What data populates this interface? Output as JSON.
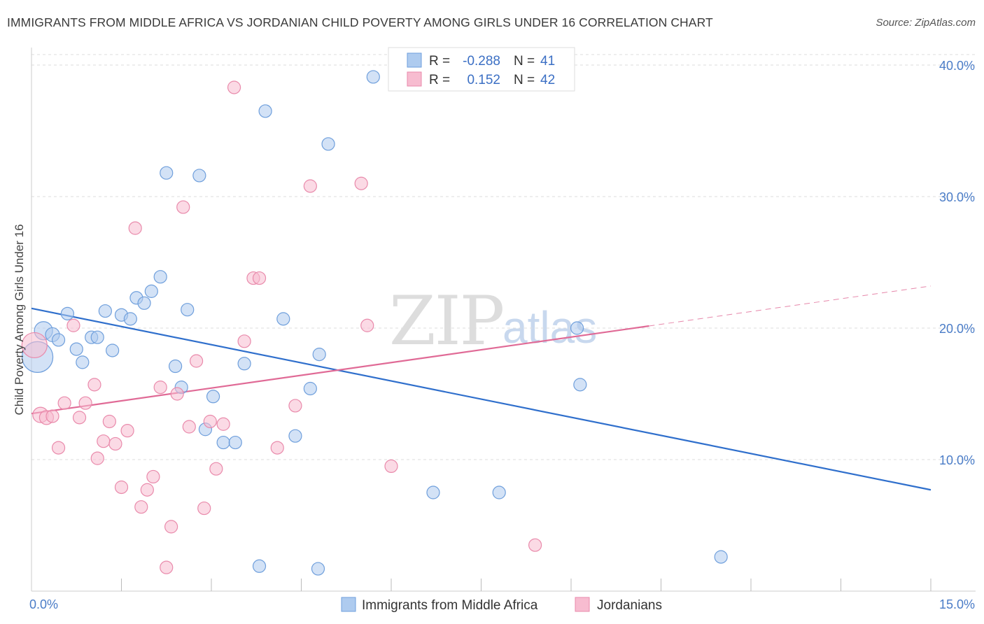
{
  "header": {
    "title": "IMMIGRANTS FROM MIDDLE AFRICA VS JORDANIAN CHILD POVERTY AMONG GIRLS UNDER 16 CORRELATION CHART",
    "source": "Source: ZipAtlas.com"
  },
  "watermark": {
    "part1": "ZIP",
    "part2": "atlas"
  },
  "legend": {
    "r_label": "R =",
    "n_label": "N =",
    "series": [
      {
        "r": "-0.288",
        "n": "41"
      },
      {
        "r": "0.152",
        "n": "42"
      }
    ]
  },
  "colors": {
    "blue_fill": "#aecbef",
    "blue_stroke": "#6f9fdc",
    "blue_line": "#2f6fcc",
    "pink_fill": "#f7bcd0",
    "pink_stroke": "#e98aab",
    "pink_line": "#e06a96",
    "grid": "#dddddd",
    "tick_text": "#4a7cc7"
  },
  "chart_data": {
    "type": "scatter",
    "title": "IMMIGRANTS FROM MIDDLE AFRICA VS JORDANIAN CHILD POVERTY AMONG GIRLS UNDER 16 CORRELATION CHART",
    "xlabel": "",
    "ylabel": "Child Poverty Among Girls Under 16",
    "xlim": [
      0,
      15
    ],
    "ylim": [
      0,
      40.8
    ],
    "x_tick_labels": [
      "0.0%",
      "15.0%"
    ],
    "y_ticks": [
      10,
      20,
      30,
      40
    ],
    "y_tick_labels": [
      "10.0%",
      "20.0%",
      "30.0%",
      "40.0%"
    ],
    "series": [
      {
        "name": "Immigrants from Middle Africa",
        "color": "blue",
        "trend": {
          "x": [
            0,
            15
          ],
          "y": [
            21.5,
            7.7
          ],
          "dashed_from": null
        },
        "points": [
          {
            "x": 0.1,
            "y": 17.8,
            "s": 22
          },
          {
            "x": 0.2,
            "y": 19.8,
            "s": 13
          },
          {
            "x": 0.35,
            "y": 19.5,
            "s": 10
          },
          {
            "x": 0.45,
            "y": 19.1,
            "s": 9
          },
          {
            "x": 0.6,
            "y": 21.1,
            "s": 9
          },
          {
            "x": 0.75,
            "y": 18.4,
            "s": 9
          },
          {
            "x": 0.85,
            "y": 17.4,
            "s": 9
          },
          {
            "x": 1.0,
            "y": 19.3,
            "s": 9
          },
          {
            "x": 1.1,
            "y": 19.3,
            "s": 9
          },
          {
            "x": 1.23,
            "y": 21.3,
            "s": 9
          },
          {
            "x": 1.35,
            "y": 18.3,
            "s": 9
          },
          {
            "x": 1.5,
            "y": 21.0,
            "s": 9
          },
          {
            "x": 1.65,
            "y": 20.7,
            "s": 9
          },
          {
            "x": 1.75,
            "y": 22.3,
            "s": 9
          },
          {
            "x": 1.88,
            "y": 21.9,
            "s": 9
          },
          {
            "x": 2.0,
            "y": 22.8,
            "s": 9
          },
          {
            "x": 2.15,
            "y": 23.9,
            "s": 9
          },
          {
            "x": 2.25,
            "y": 31.8,
            "s": 9
          },
          {
            "x": 2.4,
            "y": 17.1,
            "s": 9
          },
          {
            "x": 2.5,
            "y": 15.5,
            "s": 9
          },
          {
            "x": 2.6,
            "y": 21.4,
            "s": 9
          },
          {
            "x": 2.8,
            "y": 31.6,
            "s": 9
          },
          {
            "x": 2.9,
            "y": 12.3,
            "s": 9
          },
          {
            "x": 3.03,
            "y": 14.8,
            "s": 9
          },
          {
            "x": 3.2,
            "y": 11.3,
            "s": 9
          },
          {
            "x": 3.4,
            "y": 11.3,
            "s": 9
          },
          {
            "x": 3.55,
            "y": 17.3,
            "s": 9
          },
          {
            "x": 3.8,
            "y": 1.9,
            "s": 9
          },
          {
            "x": 3.9,
            "y": 36.5,
            "s": 9
          },
          {
            "x": 4.2,
            "y": 20.7,
            "s": 9
          },
          {
            "x": 4.4,
            "y": 11.8,
            "s": 9
          },
          {
            "x": 4.65,
            "y": 15.4,
            "s": 9
          },
          {
            "x": 4.78,
            "y": 1.7,
            "s": 9
          },
          {
            "x": 4.8,
            "y": 18.0,
            "s": 9
          },
          {
            "x": 4.95,
            "y": 34.0,
            "s": 9
          },
          {
            "x": 5.7,
            "y": 39.1,
            "s": 9
          },
          {
            "x": 6.7,
            "y": 7.5,
            "s": 9
          },
          {
            "x": 7.8,
            "y": 7.5,
            "s": 9
          },
          {
            "x": 9.1,
            "y": 20.0,
            "s": 9
          },
          {
            "x": 9.15,
            "y": 15.7,
            "s": 9
          },
          {
            "x": 11.5,
            "y": 2.6,
            "s": 9
          }
        ]
      },
      {
        "name": "Jordanians",
        "color": "pink",
        "trend": {
          "x": [
            0,
            15
          ],
          "y": [
            13.5,
            23.2
          ],
          "dashed_from": 10.3
        },
        "points": [
          {
            "x": 0.05,
            "y": 18.7,
            "s": 18
          },
          {
            "x": 0.15,
            "y": 13.4,
            "s": 11
          },
          {
            "x": 0.25,
            "y": 13.2,
            "s": 10
          },
          {
            "x": 0.35,
            "y": 13.3,
            "s": 9
          },
          {
            "x": 0.45,
            "y": 10.9,
            "s": 9
          },
          {
            "x": 0.55,
            "y": 14.3,
            "s": 9
          },
          {
            "x": 0.7,
            "y": 20.2,
            "s": 9
          },
          {
            "x": 0.8,
            "y": 13.2,
            "s": 9
          },
          {
            "x": 0.9,
            "y": 14.3,
            "s": 9
          },
          {
            "x": 1.05,
            "y": 15.7,
            "s": 9
          },
          {
            "x": 1.1,
            "y": 10.1,
            "s": 9
          },
          {
            "x": 1.2,
            "y": 11.4,
            "s": 9
          },
          {
            "x": 1.3,
            "y": 12.9,
            "s": 9
          },
          {
            "x": 1.4,
            "y": 11.2,
            "s": 9
          },
          {
            "x": 1.5,
            "y": 7.9,
            "s": 9
          },
          {
            "x": 1.6,
            "y": 12.2,
            "s": 9
          },
          {
            "x": 1.73,
            "y": 27.6,
            "s": 9
          },
          {
            "x": 1.83,
            "y": 6.4,
            "s": 9
          },
          {
            "x": 1.93,
            "y": 7.7,
            "s": 9
          },
          {
            "x": 2.03,
            "y": 8.7,
            "s": 9
          },
          {
            "x": 2.15,
            "y": 15.5,
            "s": 9
          },
          {
            "x": 2.25,
            "y": 1.8,
            "s": 9
          },
          {
            "x": 2.33,
            "y": 4.9,
            "s": 9
          },
          {
            "x": 2.43,
            "y": 15.0,
            "s": 9
          },
          {
            "x": 2.53,
            "y": 29.2,
            "s": 9
          },
          {
            "x": 2.63,
            "y": 12.5,
            "s": 9
          },
          {
            "x": 2.75,
            "y": 17.5,
            "s": 9
          },
          {
            "x": 2.88,
            "y": 6.3,
            "s": 9
          },
          {
            "x": 2.98,
            "y": 12.9,
            "s": 9
          },
          {
            "x": 3.08,
            "y": 9.3,
            "s": 9
          },
          {
            "x": 3.2,
            "y": 12.7,
            "s": 9
          },
          {
            "x": 3.38,
            "y": 38.3,
            "s": 9
          },
          {
            "x": 3.55,
            "y": 19.0,
            "s": 9
          },
          {
            "x": 3.7,
            "y": 23.8,
            "s": 9
          },
          {
            "x": 3.8,
            "y": 23.8,
            "s": 9
          },
          {
            "x": 4.1,
            "y": 10.9,
            "s": 9
          },
          {
            "x": 4.4,
            "y": 14.1,
            "s": 9
          },
          {
            "x": 4.65,
            "y": 30.8,
            "s": 9
          },
          {
            "x": 5.5,
            "y": 31.0,
            "s": 9
          },
          {
            "x": 5.6,
            "y": 20.2,
            "s": 9
          },
          {
            "x": 6.0,
            "y": 9.5,
            "s": 9
          },
          {
            "x": 8.4,
            "y": 3.5,
            "s": 9
          }
        ]
      }
    ]
  }
}
